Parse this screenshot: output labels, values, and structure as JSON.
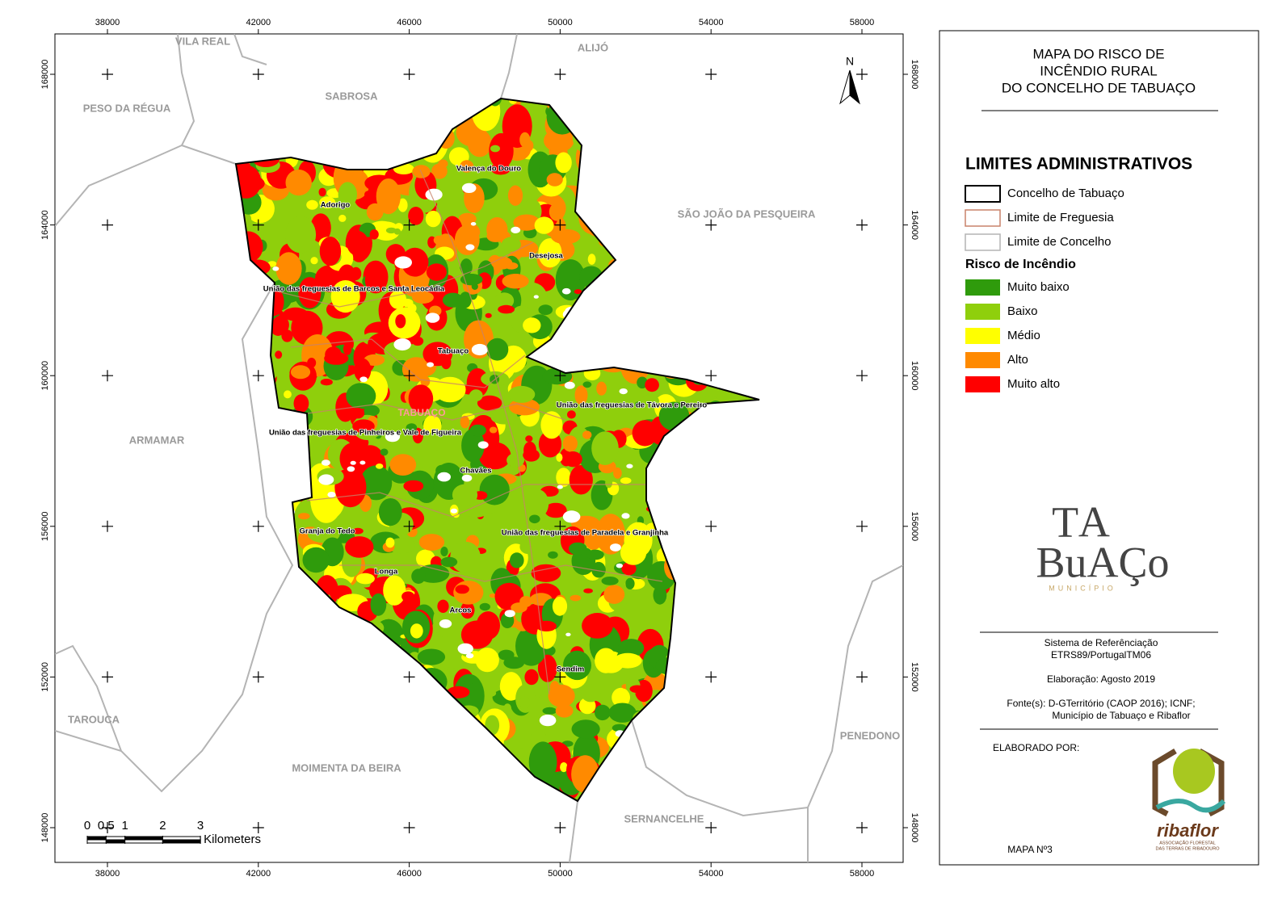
{
  "map": {
    "x_ticks": [
      38000,
      42000,
      46000,
      50000,
      54000,
      58000
    ],
    "y_ticks": [
      148000,
      152000,
      156000,
      160000,
      164000,
      168000
    ],
    "north": "N",
    "neighbors": [
      "VILA REAL",
      "ALIJÓ",
      "PESO DA RÉGUA",
      "SABROSA",
      "SÃO JOÃO DA PESQUEIRA",
      "ARMAMAR",
      "TAROUCA",
      "MOIMENTA DA BEIRA",
      "SERNANCELHE",
      "PENEDONO"
    ],
    "parishes": [
      "Valença do Douro",
      "Adorigo",
      "Desejosa",
      "União das freguesias de Barcos e Santa Leocádia",
      "Tabuaço",
      "União das freguesias de Távora e Pereiro",
      "TABUAÇO",
      "União das freguesias de Pinheiros e Vale de Figueira",
      "Chavães",
      "Granja do Tedo",
      "União das freguesias de Paradela e Granjinha",
      "Longa",
      "Arcos",
      "Sendim"
    ],
    "scale": {
      "ticks": [
        0,
        0.5,
        1,
        2,
        3
      ],
      "unit": "Kilometers"
    }
  },
  "panel": {
    "title": [
      "MAPA DO RISCO DE",
      "INCÊNDIO RURAL",
      "DO CONCELHO DE TABUAÇO"
    ],
    "limits_heading": "LIMITES ADMINISTRATIVOS",
    "limits": [
      {
        "label": "Concelho de Tabuaço",
        "color": "#000000"
      },
      {
        "label": "Limite de Freguesia",
        "color": "#c8826a"
      },
      {
        "label": "Limite de Concelho",
        "color": "#b4b4b4"
      }
    ],
    "risk_heading": "Risco de Incêndio",
    "risk": [
      {
        "label": "Muito baixo",
        "color": "#2f9b0c"
      },
      {
        "label": "Baixo",
        "color": "#8fcf0c"
      },
      {
        "label": "Médio",
        "color": "#ffff00"
      },
      {
        "label": "Alto",
        "color": "#ff8a00"
      },
      {
        "label": "Muito alto",
        "color": "#ff0000"
      }
    ],
    "logo": {
      "line1": "TA",
      "line2": "BuAÇo",
      "sub": "MUNICÍPIO"
    },
    "reference": [
      "Sistema de Referênciação",
      "ETRS89/PortugalTM06"
    ],
    "elaboration": "Elaboração: Agosto 2019",
    "sources": [
      "Fonte(s): D-GTerritório (CAOP 2016); ICNF;",
      "Município de Tabuaço e Ribaflor"
    ],
    "made_by": "ELABORADO POR:",
    "ribaflor": {
      "name": "ribaflor",
      "sub": [
        "ASSOCIAÇÃO FLORESTAL",
        "DAS TERRAS DE RIBADOURO"
      ]
    },
    "map_number": "MAPA Nº3"
  }
}
